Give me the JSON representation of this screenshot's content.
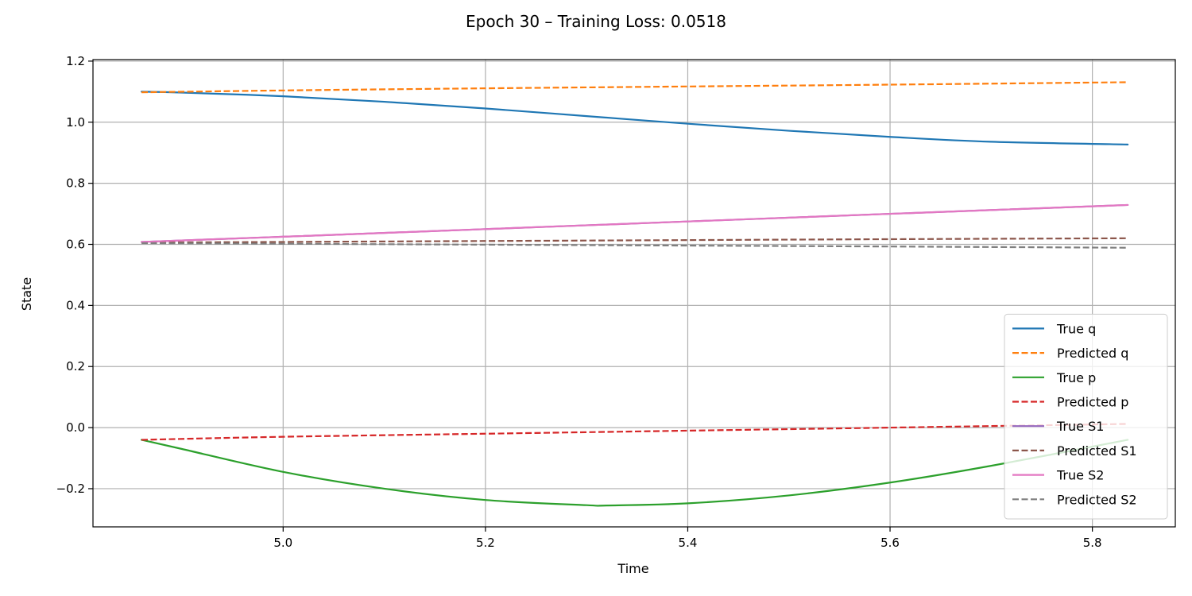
{
  "chart_data": {
    "type": "line",
    "title": "Epoch 30 – Training Loss: 0.0518",
    "xlabel": "Time",
    "ylabel": "State",
    "xlim": [
      4.812,
      5.882
    ],
    "ylim": [
      -0.325,
      1.205
    ],
    "xticks": [
      5.0,
      5.2,
      5.4,
      5.6,
      5.8
    ],
    "xtick_labels": [
      "5.0",
      "5.2",
      "5.4",
      "5.6",
      "5.8"
    ],
    "yticks": [
      -0.2,
      0.0,
      0.2,
      0.4,
      0.6,
      0.8,
      1.0,
      1.2
    ],
    "ytick_labels": [
      "−0.2",
      "0.0",
      "0.2",
      "0.4",
      "0.6",
      "0.8",
      "1.0",
      "1.2"
    ],
    "grid": true,
    "legend_position": "lower-right",
    "series": [
      {
        "name": "True q",
        "color": "#1f77b4",
        "dash": "solid",
        "x": [
          4.86,
          4.9,
          5.0,
          5.1,
          5.2,
          5.3,
          5.4,
          5.5,
          5.6,
          5.7,
          5.835
        ],
        "y": [
          1.1,
          1.097,
          1.085,
          1.067,
          1.045,
          1.02,
          0.995,
          0.972,
          0.952,
          0.936,
          0.927
        ]
      },
      {
        "name": "Predicted q",
        "color": "#ff7f0e",
        "dash": "dashed",
        "x": [
          4.86,
          5.0,
          5.2,
          5.4,
          5.6,
          5.835
        ],
        "y": [
          1.098,
          1.104,
          1.111,
          1.117,
          1.123,
          1.131
        ]
      },
      {
        "name": "True p",
        "color": "#2ca02c",
        "dash": "solid",
        "x": [
          4.86,
          4.9,
          5.0,
          5.1,
          5.2,
          5.3,
          5.32,
          5.4,
          5.5,
          5.6,
          5.7,
          5.835
        ],
        "y": [
          -0.04,
          -0.07,
          -0.145,
          -0.2,
          -0.237,
          -0.254,
          -0.255,
          -0.248,
          -0.222,
          -0.18,
          -0.125,
          -0.04
        ]
      },
      {
        "name": "Predicted p",
        "color": "#d62728",
        "dash": "dashed",
        "x": [
          4.86,
          5.0,
          5.2,
          5.4,
          5.6,
          5.835
        ],
        "y": [
          -0.04,
          -0.03,
          -0.02,
          -0.01,
          0.0,
          0.012
        ]
      },
      {
        "name": "True S1",
        "color": "#9467bd",
        "dash": "solid",
        "x": [
          4.86,
          5.0,
          5.2,
          5.4,
          5.6,
          5.835
        ],
        "y": [
          0.608,
          0.625,
          0.65,
          0.675,
          0.7,
          0.729
        ]
      },
      {
        "name": "Predicted S1",
        "color": "#8c564b",
        "dash": "dashed",
        "x": [
          4.86,
          5.0,
          5.2,
          5.4,
          5.6,
          5.835
        ],
        "y": [
          0.606,
          0.608,
          0.611,
          0.614,
          0.617,
          0.62
        ]
      },
      {
        "name": "True S2",
        "color": "#e377c2",
        "dash": "solid",
        "x": [
          4.86,
          5.0,
          5.2,
          5.4,
          5.6,
          5.835
        ],
        "y": [
          0.608,
          0.625,
          0.65,
          0.675,
          0.7,
          0.729
        ]
      },
      {
        "name": "Predicted S2",
        "color": "#7f7f7f",
        "dash": "dashed",
        "x": [
          4.86,
          5.0,
          5.2,
          5.4,
          5.6,
          5.835
        ],
        "y": [
          0.604,
          0.602,
          0.599,
          0.596,
          0.593,
          0.589
        ]
      }
    ]
  }
}
